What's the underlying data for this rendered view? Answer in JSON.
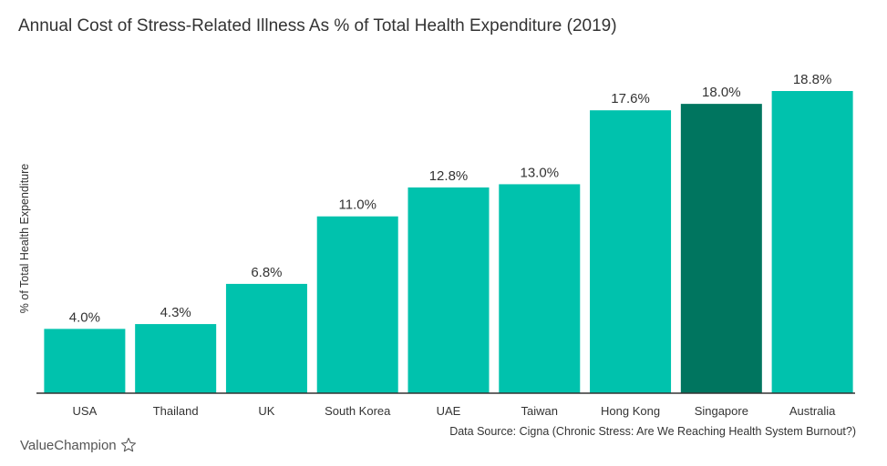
{
  "chart_data": {
    "type": "bar",
    "title": "Annual Cost of Stress-Related Illness As % of Total Health Expenditure (2019)",
    "ylabel": "% of Total Health Expenditure",
    "xlabel": "",
    "ylim": [
      0,
      18.8
    ],
    "categories": [
      "USA",
      "Thailand",
      "UK",
      "South Korea",
      "UAE",
      "Taiwan",
      "Hong Kong",
      "Singapore",
      "Australia"
    ],
    "values": [
      4.0,
      4.3,
      6.8,
      11.0,
      12.8,
      13.0,
      17.6,
      18.0,
      18.8
    ],
    "value_labels": [
      "4.0%",
      "4.3%",
      "6.8%",
      "11.0%",
      "12.8%",
      "13.0%",
      "17.6%",
      "18.0%",
      "18.8%"
    ],
    "highlight_category": "Singapore",
    "grid": false,
    "legend": "none"
  },
  "colors": {
    "bar": "#00c2ad",
    "highlight": "#00755f",
    "axis": "#333333",
    "text": "#333333"
  },
  "source_note": "Data Source: Cigna (Chronic Stress: Are We Reaching Health System Burnout?)",
  "brand": {
    "name": "ValueChampion",
    "icon": "star-outline-icon"
  }
}
